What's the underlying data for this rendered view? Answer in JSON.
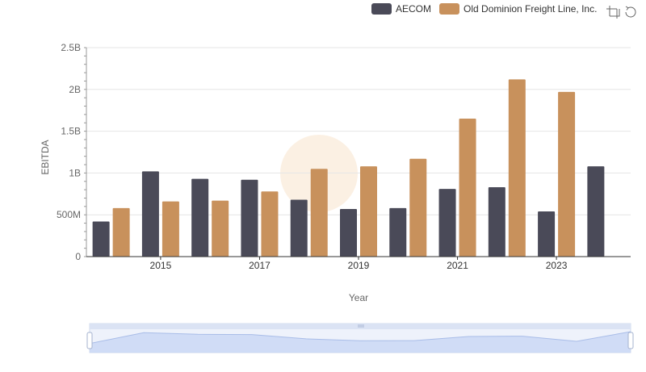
{
  "legend": {
    "items": [
      {
        "label": "AECOM",
        "color": "#4a4a58"
      },
      {
        "label": "Old Dominion Freight Line, Inc.",
        "color": "#c8915c"
      }
    ]
  },
  "toolbar": {
    "icons": [
      "zoom-select-icon",
      "restore-icon"
    ]
  },
  "chart_data": {
    "type": "bar",
    "categories": [
      "2014",
      "2015",
      "2016",
      "2017",
      "2018",
      "2019",
      "2020",
      "2021",
      "2022",
      "2023",
      "2024"
    ],
    "x_tick_labels": [
      "2015",
      "2017",
      "2019",
      "2021",
      "2023"
    ],
    "series": [
      {
        "name": "AECOM",
        "color": "#4a4a58",
        "values": [
          0.42,
          1.02,
          0.93,
          0.92,
          0.68,
          0.57,
          0.58,
          0.81,
          0.83,
          0.54,
          1.08
        ]
      },
      {
        "name": "Old Dominion Freight Line, Inc.",
        "color": "#c8915c",
        "values": [
          0.58,
          0.66,
          0.67,
          0.78,
          1.05,
          1.08,
          1.17,
          1.65,
          2.12,
          1.97,
          null
        ]
      }
    ],
    "xlabel": "Year",
    "ylabel": "EBITDA",
    "ylim": [
      0,
      2.5
    ],
    "y_ticks": [
      {
        "value": 0,
        "label": "0"
      },
      {
        "value": 0.5,
        "label": "500M"
      },
      {
        "value": 1,
        "label": "1B"
      },
      {
        "value": 1.5,
        "label": "1.5B"
      },
      {
        "value": 2,
        "label": "2B"
      },
      {
        "value": 2.5,
        "label": "2.5B"
      }
    ],
    "grid": true,
    "legend_position": "top-right",
    "data_zoom": true
  }
}
